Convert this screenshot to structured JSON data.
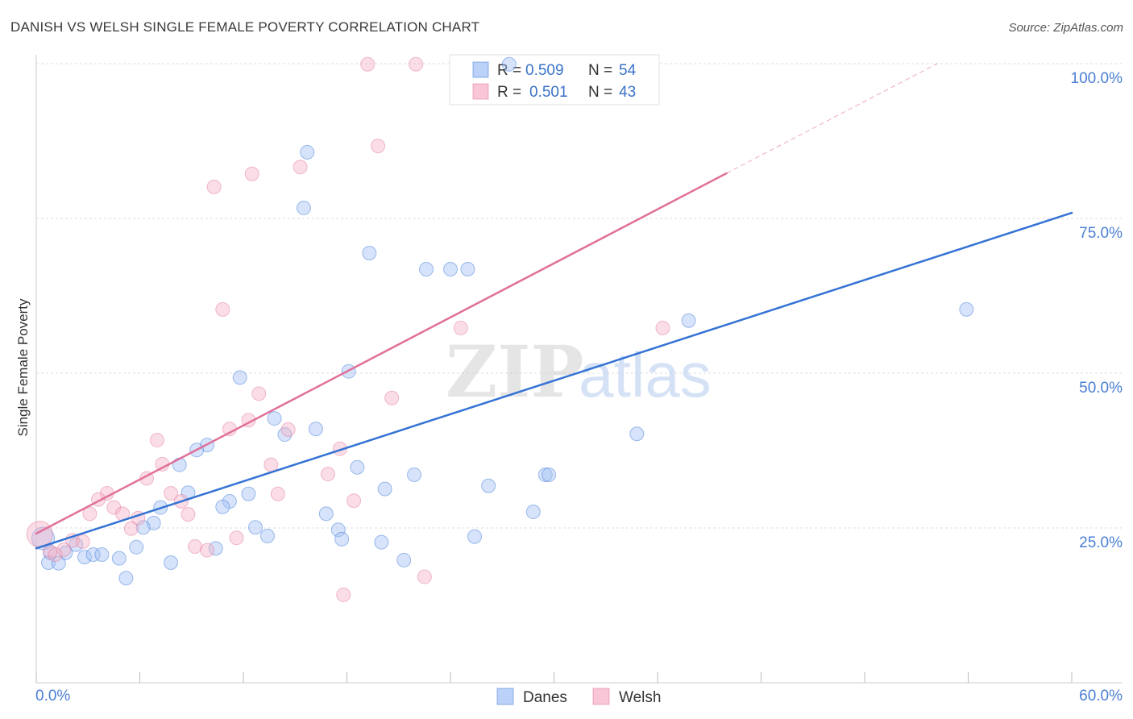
{
  "header": {
    "source": "Source: ZipAtlas.com"
  },
  "watermark": {
    "zip": "ZIP",
    "atlas": "atlas"
  },
  "chart_data": {
    "type": "scatter",
    "title": "DANISH VS WELSH SINGLE FEMALE POVERTY CORRELATION CHART",
    "xlabel": "",
    "ylabel": "Single Female Poverty",
    "xlim": [
      0,
      60
    ],
    "ylim": [
      0,
      100
    ],
    "grid": true,
    "x_ticks": [
      0,
      6,
      12,
      18,
      24,
      30,
      36,
      42,
      48,
      54,
      60
    ],
    "x_tick_labels": [
      {
        "value": 0,
        "label": "0.0%"
      },
      {
        "value": 60,
        "label": "60.0%"
      }
    ],
    "y_ticks": [
      {
        "value": 100,
        "label": "100.0%"
      },
      {
        "value": 75,
        "label": "75.0%"
      },
      {
        "value": 50,
        "label": "50.0%"
      },
      {
        "value": 25,
        "label": "25.0%"
      }
    ],
    "series": [
      {
        "name": "Danes",
        "color": "#a4c2f4",
        "line_color": "#3473d4",
        "r_label": "R =",
        "r": "0.509",
        "n_label": "N =",
        "n": "54",
        "points": [
          [
            0.4,
            23.3
          ],
          [
            27.4,
            99.9
          ],
          [
            15.7,
            85.7
          ],
          [
            15.5,
            76.7
          ],
          [
            19.3,
            69.4
          ],
          [
            22.6,
            66.8
          ],
          [
            24.0,
            66.8
          ],
          [
            25.0,
            66.8
          ],
          [
            53.9,
            60.3
          ],
          [
            37.8,
            58.5
          ],
          [
            11.8,
            49.3
          ],
          [
            18.1,
            50.3
          ],
          [
            34.8,
            40.2
          ],
          [
            13.8,
            42.7
          ],
          [
            14.4,
            40.1
          ],
          [
            16.2,
            41.0
          ],
          [
            9.9,
            38.4
          ],
          [
            9.3,
            37.6
          ],
          [
            8.3,
            35.2
          ],
          [
            18.6,
            34.8
          ],
          [
            21.9,
            33.6
          ],
          [
            29.5,
            33.6
          ],
          [
            29.7,
            33.6
          ],
          [
            26.2,
            31.8
          ],
          [
            20.2,
            31.3
          ],
          [
            8.8,
            30.7
          ],
          [
            12.3,
            30.5
          ],
          [
            11.2,
            29.3
          ],
          [
            10.8,
            28.4
          ],
          [
            7.2,
            28.3
          ],
          [
            16.8,
            27.3
          ],
          [
            28.8,
            27.6
          ],
          [
            6.8,
            25.8
          ],
          [
            6.2,
            25.1
          ],
          [
            12.7,
            25.1
          ],
          [
            13.4,
            23.7
          ],
          [
            17.5,
            24.7
          ],
          [
            17.7,
            23.2
          ],
          [
            25.4,
            23.6
          ],
          [
            20.0,
            22.7
          ],
          [
            5.8,
            21.9
          ],
          [
            2.3,
            22.3
          ],
          [
            10.4,
            21.7
          ],
          [
            0.8,
            21.0
          ],
          [
            1.7,
            21.0
          ],
          [
            2.8,
            20.3
          ],
          [
            3.3,
            20.7
          ],
          [
            3.8,
            20.7
          ],
          [
            4.8,
            20.1
          ],
          [
            0.7,
            19.4
          ],
          [
            1.3,
            19.3
          ],
          [
            7.8,
            19.4
          ],
          [
            21.3,
            19.8
          ],
          [
            5.2,
            16.9
          ]
        ],
        "trend": {
          "x": [
            0,
            60
          ],
          "y": [
            21.7,
            75.9
          ]
        }
      },
      {
        "name": "Welsh",
        "color": "#f5b3c8",
        "line_color": "#e0709a",
        "r_label": "R =",
        "r": "0.501",
        "n_label": "N =",
        "n": "43",
        "points": [
          [
            0.2,
            24.0
          ],
          [
            19.2,
            99.9
          ],
          [
            22.0,
            99.9
          ],
          [
            19.8,
            86.7
          ],
          [
            15.3,
            83.3
          ],
          [
            12.5,
            82.2
          ],
          [
            10.3,
            80.1
          ],
          [
            10.8,
            60.3
          ],
          [
            24.6,
            57.3
          ],
          [
            36.3,
            57.3
          ],
          [
            20.6,
            46.0
          ],
          [
            12.9,
            46.7
          ],
          [
            12.3,
            42.4
          ],
          [
            11.2,
            41.0
          ],
          [
            14.6,
            40.9
          ],
          [
            7.0,
            39.2
          ],
          [
            17.6,
            37.8
          ],
          [
            7.3,
            35.3
          ],
          [
            13.6,
            35.2
          ],
          [
            16.9,
            33.7
          ],
          [
            6.4,
            33.0
          ],
          [
            4.1,
            30.6
          ],
          [
            7.8,
            30.6
          ],
          [
            14.0,
            30.5
          ],
          [
            3.6,
            29.6
          ],
          [
            8.4,
            29.3
          ],
          [
            18.4,
            29.4
          ],
          [
            4.5,
            28.3
          ],
          [
            3.1,
            27.3
          ],
          [
            5.0,
            27.3
          ],
          [
            8.8,
            27.2
          ],
          [
            5.9,
            26.6
          ],
          [
            5.5,
            24.9
          ],
          [
            11.6,
            23.4
          ],
          [
            2.1,
            23.0
          ],
          [
            2.7,
            22.8
          ],
          [
            9.2,
            22.0
          ],
          [
            9.9,
            21.4
          ],
          [
            1.6,
            21.5
          ],
          [
            0.8,
            21.2
          ],
          [
            1.1,
            20.7
          ],
          [
            22.5,
            17.1
          ],
          [
            17.8,
            14.2
          ]
        ],
        "trend": {
          "x": [
            0,
            40
          ],
          "y": [
            24.1,
            82.3
          ]
        },
        "trend_extension": {
          "x": [
            40,
            52.2
          ],
          "y": [
            82.3,
            100
          ]
        }
      }
    ]
  }
}
